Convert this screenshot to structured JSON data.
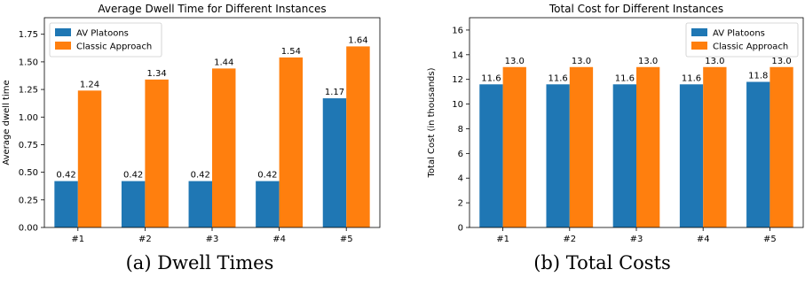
{
  "colors": {
    "av": "#1f77b4",
    "classic": "#ff7f0e"
  },
  "captions": {
    "a": "(a) Dwell Times",
    "b": "(b) Total Costs"
  },
  "chart_data": [
    {
      "type": "bar",
      "title": "Average Dwell Time for Different Instances",
      "xlabel": "",
      "ylabel": "Average dwell time",
      "categories": [
        "#1",
        "#2",
        "#3",
        "#4",
        "#5"
      ],
      "ylim": [
        0,
        1.9
      ],
      "yticks": [
        "0.00",
        "0.25",
        "0.50",
        "0.75",
        "1.00",
        "1.25",
        "1.50",
        "1.75"
      ],
      "ytick_values": [
        0,
        0.25,
        0.5,
        0.75,
        1.0,
        1.25,
        1.5,
        1.75
      ],
      "legend": "top-left",
      "grid": false,
      "series": [
        {
          "name": "AV Platoons",
          "values": [
            0.42,
            0.42,
            0.42,
            0.42,
            1.17
          ],
          "labels": [
            "0.42",
            "0.42",
            "0.42",
            "0.42",
            "1.17"
          ]
        },
        {
          "name": "Classic Approach",
          "values": [
            1.24,
            1.34,
            1.44,
            1.54,
            1.64
          ],
          "labels": [
            "1.24",
            "1.34",
            "1.44",
            "1.54",
            "1.64"
          ]
        }
      ]
    },
    {
      "type": "bar",
      "title": "Total Cost for Different Instances",
      "xlabel": "",
      "ylabel": "Total Cost (in thousands)",
      "categories": [
        "#1",
        "#2",
        "#3",
        "#4",
        "#5"
      ],
      "ylim": [
        0,
        17
      ],
      "yticks": [
        "0",
        "2",
        "4",
        "6",
        "8",
        "10",
        "12",
        "14",
        "16"
      ],
      "ytick_values": [
        0,
        2,
        4,
        6,
        8,
        10,
        12,
        14,
        16
      ],
      "legend": "top-right",
      "grid": false,
      "series": [
        {
          "name": "AV Platoons",
          "values": [
            11.6,
            11.6,
            11.6,
            11.6,
            11.8
          ],
          "labels": [
            "11.6",
            "11.6",
            "11.6",
            "11.6",
            "11.8"
          ]
        },
        {
          "name": "Classic Approach",
          "values": [
            13.0,
            13.0,
            13.0,
            13.0,
            13.0
          ],
          "labels": [
            "13.0",
            "13.0",
            "13.0",
            "13.0",
            "13.0"
          ]
        }
      ]
    }
  ]
}
